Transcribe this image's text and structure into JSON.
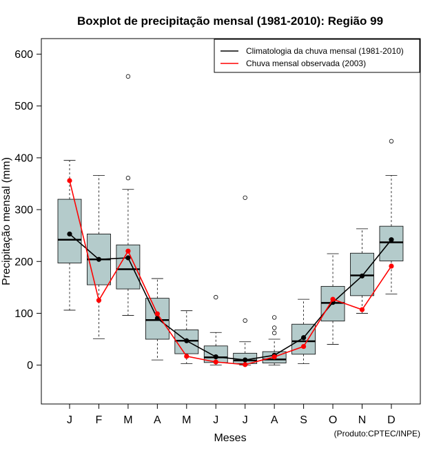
{
  "chart_data": {
    "type": "boxplot",
    "title": "Boxplot de precipitação mensal (1981-2010): Região 99",
    "xlabel": "Meses",
    "ylabel": "Precipitação mensal (mm)",
    "ylim": [
      -75,
      630
    ],
    "yticks": [
      0,
      100,
      200,
      300,
      400,
      500,
      600
    ],
    "categories": [
      "J",
      "F",
      "M",
      "A",
      "M",
      "J",
      "J",
      "A",
      "S",
      "O",
      "N",
      "D"
    ],
    "boxes": [
      {
        "min": 106,
        "q1": 197,
        "median": 242,
        "q3": 320,
        "max": 395,
        "outliers": []
      },
      {
        "min": 51,
        "q1": 155,
        "median": 204,
        "q3": 253,
        "max": 366,
        "outliers": []
      },
      {
        "min": 96,
        "q1": 147,
        "median": 185,
        "q3": 232,
        "max": 339,
        "outliers": [
          361,
          557
        ]
      },
      {
        "min": 10,
        "q1": 50,
        "median": 87,
        "q3": 129,
        "max": 167,
        "outliers": []
      },
      {
        "min": 3,
        "q1": 22,
        "median": 47,
        "q3": 68,
        "max": 105,
        "outliers": []
      },
      {
        "min": 0,
        "q1": 5,
        "median": 15,
        "q3": 37,
        "max": 63,
        "outliers": [
          131
        ]
      },
      {
        "min": 0,
        "q1": 3,
        "median": 9,
        "q3": 23,
        "max": 45,
        "outliers": [
          86,
          323
        ]
      },
      {
        "min": 0,
        "q1": 4,
        "median": 11,
        "q3": 26,
        "max": 50,
        "outliers": [
          62,
          72,
          92
        ]
      },
      {
        "min": 3,
        "q1": 21,
        "median": 46,
        "q3": 79,
        "max": 127,
        "outliers": []
      },
      {
        "min": 40,
        "q1": 85,
        "median": 120,
        "q3": 152,
        "max": 215,
        "outliers": []
      },
      {
        "min": 100,
        "q1": 134,
        "median": 173,
        "q3": 216,
        "max": 263,
        "outliers": []
      },
      {
        "min": 137,
        "q1": 201,
        "median": 237,
        "q3": 268,
        "max": 366,
        "outliers": [
          432
        ]
      }
    ],
    "series": [
      {
        "name": "Climatologia da chuva mensal (1981-2010)",
        "color": "#000000",
        "values": [
          253,
          204,
          207,
          90,
          47,
          16,
          10,
          19,
          53,
          121,
          172,
          242
        ]
      },
      {
        "name": "Chuva mensal observada (2003)",
        "color": "#ff0000",
        "values": [
          356,
          125,
          220,
          99,
          17,
          6,
          1,
          16,
          36,
          127,
          107,
          191
        ]
      }
    ],
    "box_color": "#b4cbcb",
    "legend_position": "top-right",
    "credit": "(Produto:CPTEC/INPE)"
  }
}
